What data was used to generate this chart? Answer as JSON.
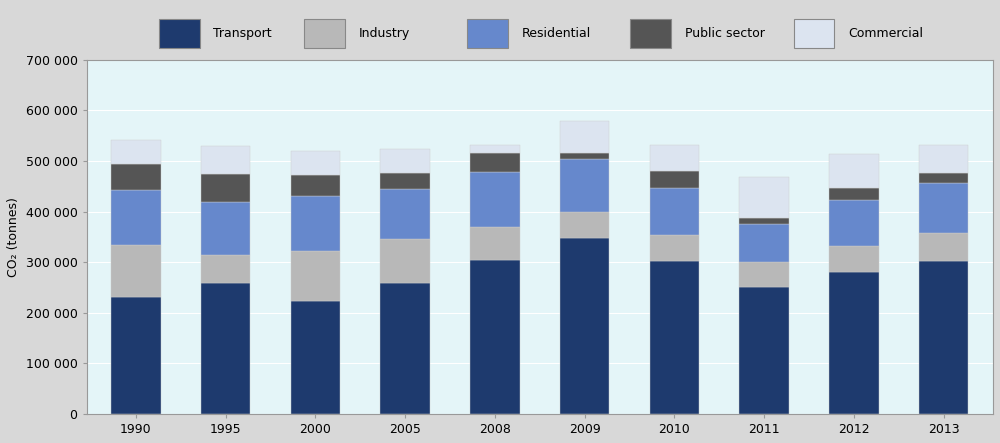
{
  "categories": [
    "1990",
    "1995",
    "2000",
    "2005",
    "2008",
    "2009",
    "2010",
    "2011",
    "2012",
    "2013"
  ],
  "sectors": [
    "Transport",
    "Industry",
    "Residential",
    "Public sector",
    "Commercial"
  ],
  "colors": [
    "#1e3a6e",
    "#b8b8b8",
    "#6688cc",
    "#555555",
    "#dce4f0"
  ],
  "data": {
    "Transport": [
      232000,
      258000,
      224000,
      258000,
      305000,
      347000,
      302000,
      252000,
      280000,
      302000
    ],
    "Industry": [
      102000,
      57000,
      98000,
      88000,
      65000,
      53000,
      52000,
      48000,
      52000,
      55000
    ],
    "Residential": [
      108000,
      105000,
      108000,
      98000,
      108000,
      105000,
      92000,
      75000,
      92000,
      100000
    ],
    "Public sector": [
      52000,
      55000,
      42000,
      32000,
      38000,
      10000,
      35000,
      12000,
      22000,
      20000
    ],
    "Commercial": [
      47000,
      55000,
      48000,
      48000,
      15000,
      65000,
      50000,
      82000,
      68000,
      55000
    ]
  },
  "ylabel": "CO₂ (tonnes)",
  "ylim": [
    0,
    700000
  ],
  "yticks": [
    0,
    100000,
    200000,
    300000,
    400000,
    500000,
    600000,
    700000
  ],
  "ytick_labels": [
    "0",
    "100 000",
    "200 000",
    "300 000",
    "400 000",
    "500 000",
    "600 000",
    "700 000"
  ],
  "fig_bg": "#d8d8d8",
  "plot_bg": "#e4f5f8",
  "legend_bg": "#d0d0d0",
  "bar_width": 0.55
}
